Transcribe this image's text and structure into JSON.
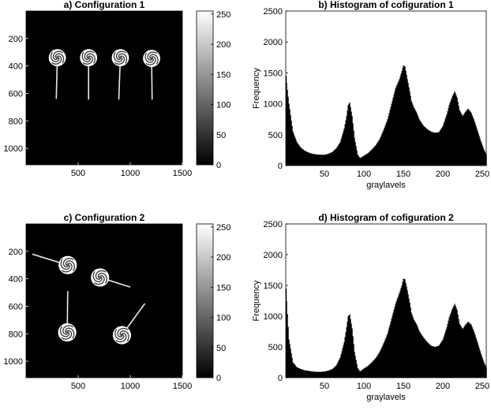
{
  "chart_data": [
    {
      "type": "heatmap",
      "panel": "a",
      "title": "a) Configuration 1",
      "xlim": [
        0,
        1500
      ],
      "ylim": [
        1120,
        0
      ],
      "x_ticks": [
        500,
        1000,
        1500
      ],
      "y_ticks": [
        200,
        400,
        600,
        800,
        1000
      ],
      "colorbar": {
        "range": [
          0,
          255
        ],
        "ticks": [
          0,
          50,
          100,
          150,
          200,
          250
        ],
        "colormap": "gray"
      },
      "background_color": "#000000",
      "objects": [
        {
          "label": "lollipop",
          "center": [
            300,
            340
          ],
          "radius": 75,
          "stick_end": [
            290,
            640
          ]
        },
        {
          "label": "lollipop",
          "center": [
            600,
            340
          ],
          "radius": 75,
          "stick_end": [
            600,
            645
          ]
        },
        {
          "label": "lollipop",
          "center": [
            905,
            340
          ],
          "radius": 75,
          "stick_end": [
            890,
            645
          ]
        },
        {
          "label": "lollipop",
          "center": [
            1205,
            345
          ],
          "radius": 75,
          "stick_end": [
            1210,
            645
          ]
        }
      ]
    },
    {
      "type": "bar",
      "panel": "b",
      "title": "b) Histogram of cofiguration 1",
      "xlabel": "graylavels",
      "ylabel": "Frequency",
      "xlim": [
        1,
        255
      ],
      "ylim": [
        0,
        2500
      ],
      "x_ticks": [
        50,
        100,
        150,
        200,
        250
      ],
      "y_ticks": [
        0,
        500,
        1000,
        1500,
        2000,
        2500
      ],
      "x": [
        1,
        5,
        10,
        15,
        20,
        25,
        30,
        35,
        40,
        45,
        50,
        55,
        60,
        65,
        70,
        75,
        78,
        80,
        82,
        85,
        88,
        92,
        95,
        100,
        105,
        110,
        115,
        120,
        125,
        130,
        135,
        140,
        145,
        148,
        150,
        152,
        155,
        158,
        160,
        163,
        167,
        170,
        175,
        180,
        185,
        190,
        195,
        200,
        205,
        208,
        212,
        215,
        218,
        221,
        225,
        228,
        232,
        236,
        240,
        244,
        248,
        252,
        255
      ],
      "values": [
        1450,
        1000,
        550,
        380,
        290,
        240,
        210,
        190,
        180,
        175,
        175,
        190,
        220,
        280,
        380,
        600,
        800,
        980,
        1020,
        800,
        450,
        180,
        120,
        160,
        200,
        260,
        330,
        430,
        580,
        750,
        1000,
        1250,
        1400,
        1530,
        1620,
        1600,
        1400,
        1200,
        1050,
        950,
        850,
        750,
        650,
        590,
        550,
        530,
        540,
        640,
        830,
        980,
        1120,
        1200,
        1100,
        900,
        800,
        860,
        920,
        850,
        720,
        560,
        400,
        260,
        180
      ],
      "color": "#000000"
    },
    {
      "type": "heatmap",
      "panel": "c",
      "title": "c) Configuration 2",
      "xlim": [
        0,
        1500
      ],
      "ylim": [
        1120,
        0
      ],
      "x_ticks": [
        500,
        1000,
        1500
      ],
      "y_ticks": [
        200,
        400,
        600,
        800,
        1000
      ],
      "colorbar": {
        "range": [
          0,
          255
        ],
        "ticks": [
          0,
          50,
          100,
          150,
          200,
          250
        ],
        "colormap": "gray"
      },
      "background_color": "#000000",
      "objects": [
        {
          "label": "lollipop",
          "center": [
            400,
            300
          ],
          "radius": 80,
          "stick_end": [
            60,
            220
          ]
        },
        {
          "label": "lollipop",
          "center": [
            710,
            390
          ],
          "radius": 80,
          "stick_end": [
            1000,
            460
          ]
        },
        {
          "label": "lollipop",
          "center": [
            395,
            790
          ],
          "radius": 80,
          "stick_end": [
            400,
            490
          ]
        },
        {
          "label": "lollipop",
          "center": [
            920,
            810
          ],
          "radius": 80,
          "stick_end": [
            1140,
            580
          ]
        }
      ]
    },
    {
      "type": "bar",
      "panel": "d",
      "title": "d) Histogram of cofiguration 2",
      "xlabel": "graylavels",
      "ylabel": "Frequency",
      "xlim": [
        1,
        255
      ],
      "ylim": [
        0,
        2500
      ],
      "x_ticks": [
        50,
        100,
        150,
        200,
        250
      ],
      "y_ticks": [
        0,
        500,
        1000,
        1500,
        2000,
        2500
      ],
      "x": [
        1,
        5,
        10,
        15,
        20,
        25,
        30,
        35,
        40,
        45,
        50,
        55,
        60,
        65,
        70,
        75,
        78,
        80,
        82,
        85,
        88,
        92,
        95,
        100,
        105,
        110,
        115,
        120,
        125,
        130,
        135,
        140,
        145,
        148,
        150,
        152,
        155,
        158,
        160,
        163,
        167,
        170,
        175,
        180,
        185,
        190,
        195,
        200,
        205,
        208,
        212,
        215,
        218,
        221,
        225,
        228,
        232,
        236,
        240,
        244,
        248,
        252,
        255
      ],
      "values": [
        1450,
        620,
        250,
        170,
        140,
        120,
        110,
        100,
        95,
        95,
        100,
        115,
        140,
        200,
        330,
        580,
        820,
        1000,
        1030,
        800,
        420,
        160,
        100,
        150,
        190,
        250,
        320,
        420,
        560,
        720,
        960,
        1200,
        1380,
        1500,
        1610,
        1600,
        1420,
        1220,
        1060,
        950,
        860,
        760,
        660,
        580,
        520,
        500,
        520,
        620,
        820,
        980,
        1120,
        1200,
        1100,
        880,
        790,
        850,
        910,
        860,
        730,
        570,
        400,
        250,
        170
      ],
      "color": "#000000"
    }
  ]
}
